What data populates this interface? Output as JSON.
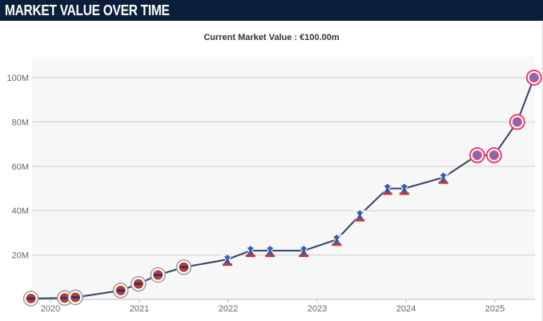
{
  "header": {
    "title": "MARKET VALUE OVER TIME"
  },
  "colors": {
    "header_bg": "#0b1f3a",
    "plot_bg": "#f7f7f7",
    "grid": "#cfcfcf",
    "line": "#2f4463",
    "club_red": "#c0392b",
    "club_blue": "#3a5aa8",
    "club_pink": "#e0457b"
  },
  "chart_data": {
    "type": "line",
    "title": "Current Market Value : €100.00m",
    "xlabel": "",
    "ylabel": "",
    "grid": true,
    "x_range": [
      2019.8,
      2025.45
    ],
    "ylim": [
      0,
      110
    ],
    "y_unit": "€m",
    "y_ticks": [
      {
        "value": 20,
        "label": "20M"
      },
      {
        "value": 40,
        "label": "40M"
      },
      {
        "value": 60,
        "label": "60M"
      },
      {
        "value": 80,
        "label": "80M"
      },
      {
        "value": 100,
        "label": "100M"
      }
    ],
    "x_ticks": [
      {
        "value": 2020,
        "label": "2020"
      },
      {
        "value": 2021,
        "label": "2021"
      },
      {
        "value": 2022,
        "label": "2022"
      },
      {
        "value": 2023,
        "label": "2023"
      },
      {
        "value": 2024,
        "label": "2024"
      },
      {
        "value": 2025,
        "label": "2025"
      }
    ],
    "series": [
      {
        "name": "Market value",
        "points": [
          {
            "x": 2019.78,
            "y": 0.4,
            "club": "reading"
          },
          {
            "x": 2020.16,
            "y": 0.6,
            "club": "reading"
          },
          {
            "x": 2020.28,
            "y": 0.9,
            "club": "reading"
          },
          {
            "x": 2020.79,
            "y": 4,
            "club": "reading"
          },
          {
            "x": 2020.99,
            "y": 7,
            "club": "reading"
          },
          {
            "x": 2021.21,
            "y": 11,
            "club": "reading"
          },
          {
            "x": 2021.5,
            "y": 14.5,
            "club": "reading"
          },
          {
            "x": 2021.99,
            "y": 18,
            "club": "crystal-palace"
          },
          {
            "x": 2022.25,
            "y": 22,
            "club": "crystal-palace"
          },
          {
            "x": 2022.47,
            "y": 22,
            "club": "crystal-palace"
          },
          {
            "x": 2022.85,
            "y": 22,
            "club": "crystal-palace"
          },
          {
            "x": 2023.22,
            "y": 27,
            "club": "crystal-palace"
          },
          {
            "x": 2023.48,
            "y": 38,
            "club": "crystal-palace"
          },
          {
            "x": 2023.79,
            "y": 50,
            "club": "crystal-palace"
          },
          {
            "x": 2023.98,
            "y": 50,
            "club": "crystal-palace"
          },
          {
            "x": 2024.42,
            "y": 55,
            "club": "crystal-palace"
          },
          {
            "x": 2024.8,
            "y": 65,
            "club": "bayern-munich"
          },
          {
            "x": 2024.99,
            "y": 65,
            "club": "bayern-munich"
          },
          {
            "x": 2025.25,
            "y": 80,
            "club": "bayern-munich"
          },
          {
            "x": 2025.44,
            "y": 100,
            "club": "bayern-munich"
          }
        ]
      }
    ]
  }
}
